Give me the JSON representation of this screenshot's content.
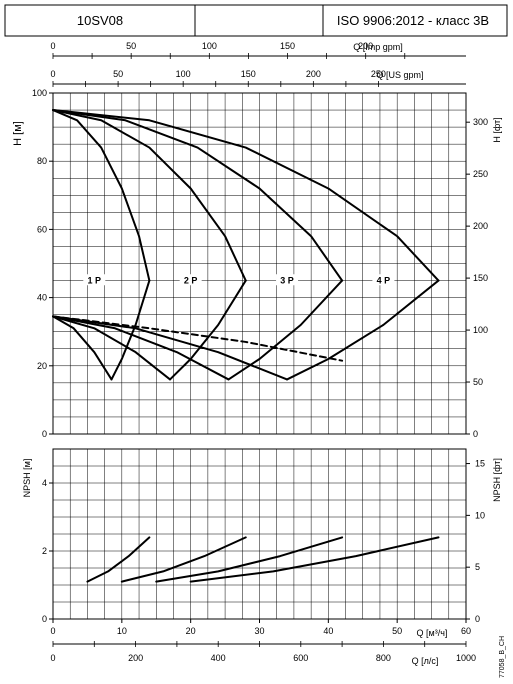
{
  "header": {
    "model": "10SV08",
    "standard": "ISO 9906:2012 - класс 3В"
  },
  "footer_code": "77058_B_CH",
  "chart_data": [
    {
      "type": "line",
      "name": "H-Q curves",
      "xlabel": "Q [м³/ч]",
      "xlim": [
        0,
        60
      ],
      "x_ticks": [
        0,
        10,
        20,
        30,
        40,
        50,
        60
      ],
      "ylabel": "H [м]",
      "ylim": [
        0,
        100
      ],
      "y_ticks": [
        0,
        20,
        40,
        60,
        80,
        100
      ],
      "y2label": "H [фт]",
      "y2_ticks": [
        0,
        50,
        100,
        150,
        200,
        250,
        300
      ],
      "top_axis_1": {
        "label": "Q [Imp gpm]",
        "ticks": [
          0,
          50,
          100,
          150,
          200
        ]
      },
      "top_axis_2": {
        "label": "Q [US gpm]",
        "ticks": [
          0,
          50,
          100,
          150,
          200,
          250
        ]
      },
      "grid": true,
      "series": [
        {
          "name": "1 P",
          "x": [
            0,
            3.5,
            7,
            10,
            12.5,
            14
          ],
          "y": [
            95,
            92,
            84,
            72,
            58,
            45
          ]
        },
        {
          "name": "2 P",
          "x": [
            0,
            7,
            14,
            20,
            25,
            28
          ],
          "y": [
            95,
            92,
            84,
            72,
            58,
            45
          ]
        },
        {
          "name": "3 P",
          "x": [
            0,
            10.5,
            21,
            30,
            37.5,
            42
          ],
          "y": [
            95,
            92,
            84,
            72,
            58,
            45
          ]
        },
        {
          "name": "4 P",
          "x": [
            0,
            14,
            28,
            40,
            50,
            56
          ],
          "y": [
            95,
            92,
            84,
            72,
            58,
            45
          ]
        },
        {
          "name": "",
          "x": [
            0,
            14,
            28,
            42
          ],
          "y": [
            34.5,
            31,
            27,
            21.5
          ]
        },
        {
          "name": "",
          "x": [
            14,
            12,
            10,
            8.5
          ],
          "y": [
            45,
            32,
            22,
            16
          ]
        },
        {
          "name": "",
          "x": [
            28,
            24,
            20,
            17
          ],
          "y": [
            45,
            32,
            22,
            16
          ]
        },
        {
          "name": "",
          "x": [
            42,
            36,
            30,
            25.5
          ],
          "y": [
            45,
            32,
            22,
            16
          ]
        },
        {
          "name": "",
          "x": [
            56,
            48,
            40,
            34
          ],
          "y": [
            45,
            32,
            22,
            16
          ]
        },
        {
          "name": "",
          "x": [
            0,
            3,
            6,
            8.5
          ],
          "y": [
            34.5,
            31,
            24,
            16
          ]
        },
        {
          "name": "",
          "x": [
            0,
            6,
            12,
            17
          ],
          "y": [
            34.5,
            31,
            24,
            16
          ]
        },
        {
          "name": "",
          "x": [
            0,
            9,
            18,
            25.5
          ],
          "y": [
            34.5,
            31,
            24,
            16
          ]
        },
        {
          "name": "",
          "x": [
            0,
            12,
            24,
            34
          ],
          "y": [
            34.5,
            31,
            24,
            16
          ]
        }
      ],
      "labels": [
        {
          "text": "1 P",
          "x": 6,
          "y": 44.5
        },
        {
          "text": "2 P",
          "x": 20,
          "y": 44.5
        },
        {
          "text": "3 P",
          "x": 34,
          "y": 44.5
        },
        {
          "text": "4 P",
          "x": 48,
          "y": 44.5
        }
      ]
    },
    {
      "type": "line",
      "name": "NPSH curves",
      "xlabel": "Q [л/с]",
      "x2label": "Q [м³/ч]",
      "xlim_m3h": [
        0,
        60
      ],
      "x_ticks_m3h": [
        0,
        10,
        20,
        30,
        40,
        50,
        60
      ],
      "x_ticks_ls": [
        0,
        200,
        400,
        600,
        800,
        1000
      ],
      "ylabel": "NPSH [м]",
      "ylim": [
        0,
        5
      ],
      "y_ticks": [
        0,
        2,
        4
      ],
      "y2label": "NPSH [фт]",
      "y2_ticks": [
        0,
        5,
        10,
        15
      ],
      "grid": true,
      "series": [
        {
          "name": "",
          "x": [
            5,
            8,
            11,
            14
          ],
          "y": [
            1.1,
            1.4,
            1.85,
            2.4
          ]
        },
        {
          "name": "",
          "x": [
            10,
            16,
            22,
            28
          ],
          "y": [
            1.1,
            1.4,
            1.85,
            2.4
          ]
        },
        {
          "name": "",
          "x": [
            15,
            24,
            33,
            42
          ],
          "y": [
            1.1,
            1.4,
            1.85,
            2.4
          ]
        },
        {
          "name": "",
          "x": [
            20,
            32,
            44,
            56
          ],
          "y": [
            1.1,
            1.4,
            1.85,
            2.4
          ]
        }
      ]
    }
  ]
}
